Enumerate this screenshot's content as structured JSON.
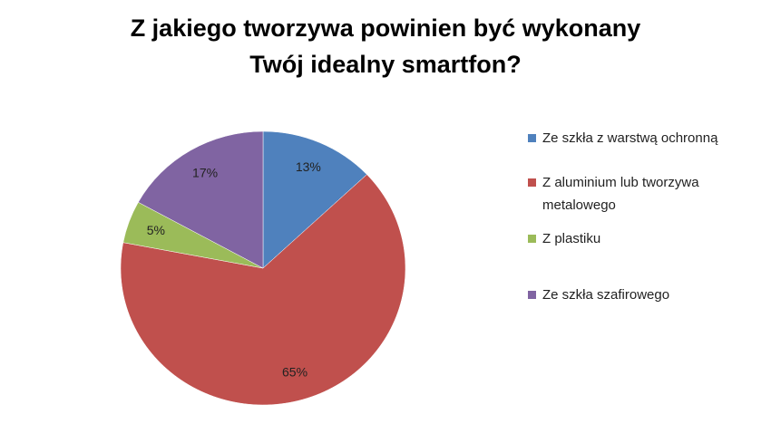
{
  "chart_data": {
    "type": "pie",
    "title": [
      "Z jakiego tworzywa powinien być wykonany",
      "Twój idealny smartfon?"
    ],
    "categories": [
      "Ze szkła z warstwą ochronną",
      "Z aluminium lub tworzywa metalowego",
      "Z plastiku",
      "Ze szkła szafirowego"
    ],
    "values": [
      13,
      65,
      5,
      17
    ],
    "value_labels": [
      "13%",
      "65%",
      "5%",
      "17%"
    ],
    "colors": [
      "#4f81bd",
      "#c0504d",
      "#9bbb59",
      "#8064a2"
    ],
    "legend": "right"
  }
}
